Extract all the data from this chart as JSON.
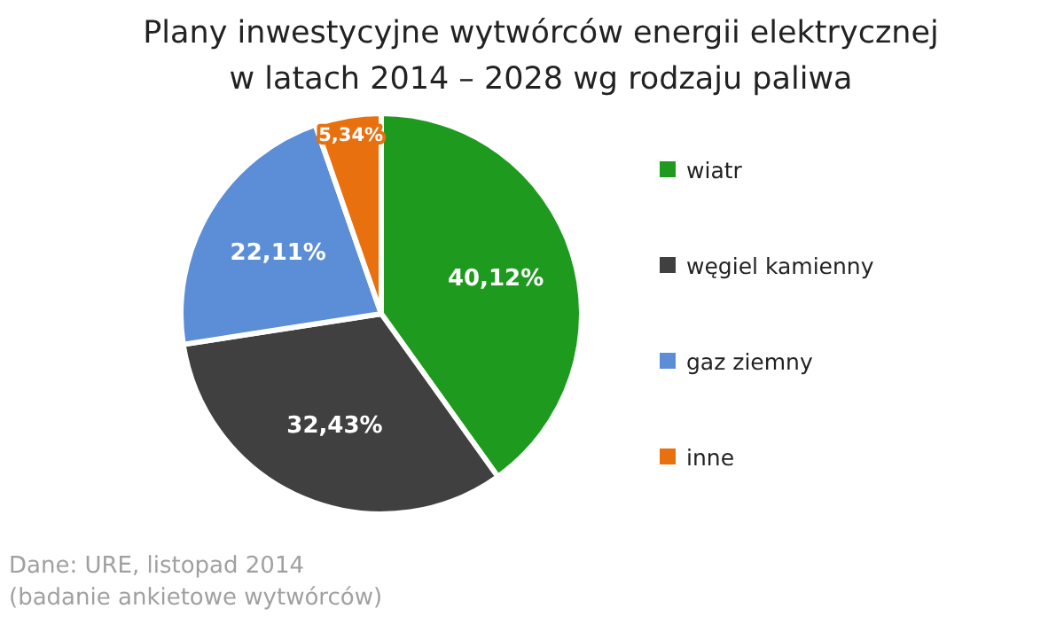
{
  "chart_data": {
    "type": "pie",
    "title": "Plany inwestycyjne wytwórców energii elektrycznej\nw latach 2014 – 2028 wg rodzaju paliwa",
    "categories": [
      "wiatr",
      "węgiel kamienny",
      "gaz ziemny",
      "inne"
    ],
    "values": [
      40.12,
      32.43,
      22.11,
      5.34
    ],
    "value_labels": [
      "40,12%",
      "32,43%",
      "22,11%",
      "5,34%"
    ],
    "colors": [
      "#1e9a1e",
      "#404040",
      "#5b8ed6",
      "#e8700f"
    ],
    "legend": "right",
    "annotations": [
      "Dane: URE, listopad 2014",
      "(badanie ankietowe wytwórców)"
    ]
  }
}
